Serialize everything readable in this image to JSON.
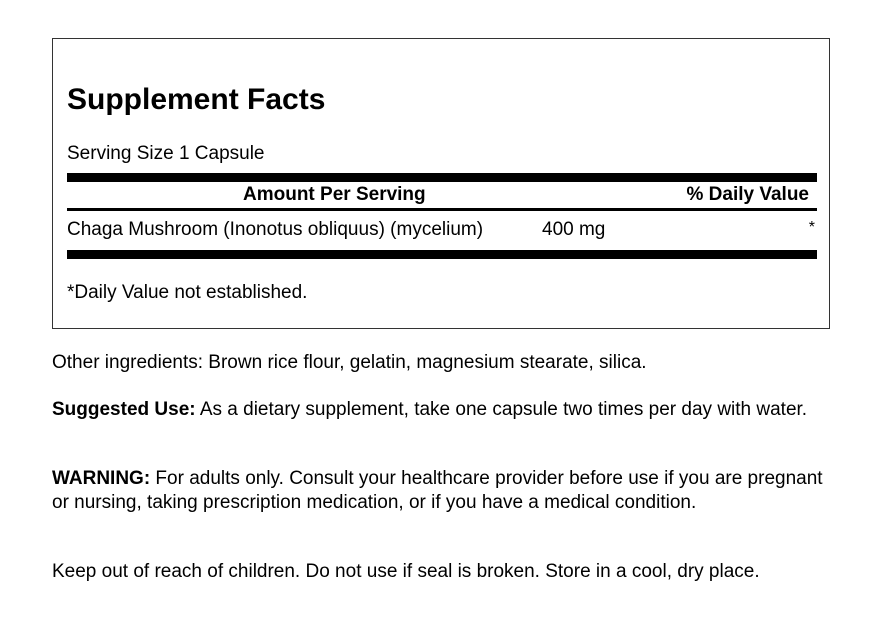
{
  "facts": {
    "title": "Supplement Facts",
    "serving_size": "Serving Size 1 Capsule",
    "header_amount": "Amount Per Serving",
    "header_dv": "% Daily Value",
    "rows": [
      {
        "name": "Chaga Mushroom (Inonotus obliquus) (mycelium)",
        "amount": "400 mg",
        "dv": "*"
      }
    ],
    "footnote": "*Daily Value not established."
  },
  "other_ingredients": "Other ingredients: Brown rice flour, gelatin, magnesium stearate, silica.",
  "suggested_use": {
    "label": "Suggested Use:",
    "text": " As a dietary supplement, take one capsule two times per day with water."
  },
  "warning": {
    "label": "WARNING:",
    "text": " For adults only. Consult your healthcare provider before use if you are pregnant or nursing, taking prescription medication, or if you have a medical condition."
  },
  "storage": "Keep out of reach of children. Do not use if seal is broken. Store in a cool, dry place."
}
